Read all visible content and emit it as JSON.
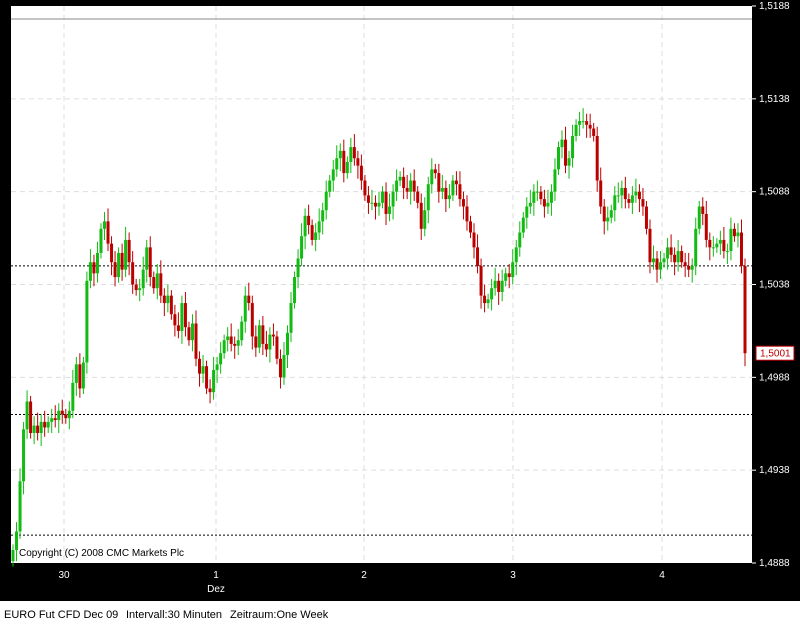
{
  "chart_data": {
    "type": "candlestick",
    "instrument": "EURO Fut CFD Dec 09",
    "interval": "30 Minuten",
    "range": "One Week",
    "copyright": "Copyright (C) 2008 CMC Markets Plc",
    "y_ticks": [
      "1,5188",
      "1,5138",
      "1,5088",
      "1,5038",
      "1,4988",
      "1,4938",
      "1,4888"
    ],
    "ylim": [
      1.4888,
      1.5188
    ],
    "x_ticks": [
      {
        "label": "30",
        "sub": ""
      },
      {
        "label": "1",
        "sub": "Dez"
      },
      {
        "label": "2",
        "sub": ""
      },
      {
        "label": "3",
        "sub": ""
      },
      {
        "label": "4",
        "sub": ""
      }
    ],
    "last_price": "1,5001",
    "last_price_value": 1.5001,
    "reference_lines": [
      1.5181,
      1.5048,
      1.4968,
      1.4903
    ],
    "up_color": "#11bb11",
    "down_color": "#bb0000",
    "closes": [
      1.4895,
      1.4905,
      1.4932,
      1.496,
      1.4975,
      1.4958,
      1.4962,
      1.4958,
      1.4964,
      1.4961,
      1.4964,
      1.4966,
      1.4965,
      1.497,
      1.4968,
      1.4966,
      1.497,
      1.4985,
      1.4995,
      1.4982,
      1.4996,
      1.504,
      1.505,
      1.5044,
      1.5055,
      1.5068,
      1.5072,
      1.506,
      1.505,
      1.5042,
      1.5055,
      1.5046,
      1.5062,
      1.505,
      1.5038,
      1.5035,
      1.5036,
      1.5046,
      1.5058,
      1.5042,
      1.5036,
      1.5044,
      1.5032,
      1.5028,
      1.5032,
      1.5022,
      1.5016,
      1.5013,
      1.5028,
      1.5015,
      1.5008,
      1.5017,
      1.4998,
      1.499,
      1.4994,
      1.4982,
      1.498,
      1.4992,
      1.4995,
      1.5001,
      1.5008,
      1.501,
      1.5006,
      1.5005,
      1.5008,
      1.5018,
      1.5032,
      1.5028,
      1.501,
      1.5004,
      1.5016,
      1.5006,
      1.5003,
      1.5011,
      1.501,
      1.4998,
      1.4988,
      1.5,
      1.5012,
      1.5028,
      1.5042,
      1.5052,
      1.5064,
      1.5075,
      1.507,
      1.5062,
      1.5066,
      1.5072,
      1.5078,
      1.5088,
      1.5094,
      1.51,
      1.5106,
      1.511,
      1.5098,
      1.5104,
      1.5112,
      1.5106,
      1.5102,
      1.5094,
      1.5086,
      1.5082,
      1.5082,
      1.508,
      1.5082,
      1.5088,
      1.5076,
      1.508,
      1.5088,
      1.5094,
      1.5096,
      1.509,
      1.5088,
      1.5094,
      1.5088,
      1.5082,
      1.5068,
      1.5078,
      1.5092,
      1.51,
      1.5098,
      1.5088,
      1.509,
      1.5084,
      1.5086,
      1.5094,
      1.5092,
      1.5084,
      1.508,
      1.5072,
      1.5066,
      1.5058,
      1.5048,
      1.5032,
      1.5028,
      1.503,
      1.5036,
      1.504,
      1.5034,
      1.504,
      1.5044,
      1.5042,
      1.505,
      1.5058,
      1.5066,
      1.5074,
      1.508,
      1.5082,
      1.5088,
      1.5088,
      1.5084,
      1.508,
      1.5082,
      1.5088,
      1.51,
      1.5112,
      1.5116,
      1.5102,
      1.5106,
      1.5118,
      1.5124,
      1.5126,
      1.5126,
      1.5124,
      1.5122,
      1.5118,
      1.5094,
      1.508,
      1.5072,
      1.5074,
      1.5078,
      1.5086,
      1.5086,
      1.509,
      1.5084,
      1.5082,
      1.5086,
      1.5088,
      1.5084,
      1.508,
      1.5068,
      1.505,
      1.5052,
      1.5046,
      1.505,
      1.5052,
      1.5058,
      1.5054,
      1.505,
      1.5056,
      1.505,
      1.5048,
      1.5046,
      1.5048,
      1.5068,
      1.508,
      1.5076,
      1.5062,
      1.5058,
      1.5058,
      1.506,
      1.5062,
      1.5056,
      1.5056,
      1.5068,
      1.5064,
      1.5066,
      1.5048,
      1.5001
    ]
  },
  "footer": {
    "symbol": "EURO Fut CFD Dec 09",
    "interval_text": "Intervall:30 Minuten",
    "range_text": "Zeitraum:One Week"
  }
}
